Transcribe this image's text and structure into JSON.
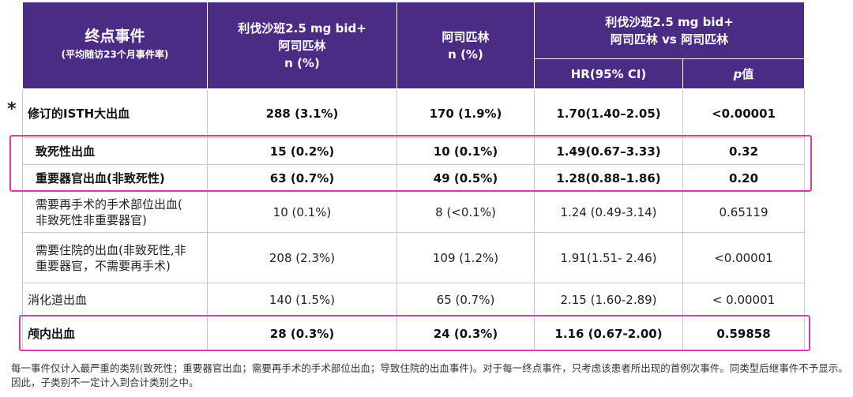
{
  "star": "*",
  "header": {
    "endpoint_main": "终点事件",
    "endpoint_sub": "(平均随访23个月事件率)",
    "riva_line1": "利伐沙班2.5 mg bid+",
    "riva_line2": "阿司匹林",
    "riva_line3": "n (%)",
    "asp_line1": "阿司匹林",
    "asp_line2": "n (%)",
    "compare_line1": "利伐沙班2.5 mg bid+",
    "compare_line2": "阿司匹林 vs 阿司匹林",
    "hr": "HR(95% CI)",
    "p_italic": "p",
    "p_rest": "值"
  },
  "rows": [
    {
      "name": "修订的ISTH大出血",
      "riva": "288  (3.1%)",
      "asp": "170  (1.9%)",
      "hr": "1.70(1.40–2.05)",
      "p": "<0.00001"
    },
    {
      "name": "致死性出血",
      "riva": "15  (0.2%)",
      "asp": "10  (0.1%)",
      "hr": "1.49(0.67–3.33)",
      "p": "0.32"
    },
    {
      "name": "重要器官出血(非致死性)",
      "riva": "63  (0.7%)",
      "asp": "49  (0.5%)",
      "hr": "1.28(0.88–1.86)",
      "p": "0.20"
    },
    {
      "name_line1": "需要再手术的手术部位出血(",
      "name_line2": "非致死性非重要器官)",
      "riva": "10  (0.1%)",
      "asp": "8  (<0.1%)",
      "hr": "1.24 (0.49-3.14)",
      "p": "0.65119"
    },
    {
      "name_line1": "需要住院的出血(非致死性,非",
      "name_line2": "重要器官，不需要再手术)",
      "riva": "208  (2.3%)",
      "asp": "109  (1.2%)",
      "hr": "1.91(1.51- 2.46)",
      "p": "<0.00001"
    },
    {
      "name": "消化道出血",
      "riva": "140   (1.5%)",
      "asp": "65 (0.7%)",
      "hr": "2.15  (1.60-2.89)",
      "p": "< 0.00001"
    },
    {
      "name": "颅内出血",
      "riva": "28  (0.3%)",
      "asp": "24  (0.3%)",
      "hr": "1.16 (0.67-2.00)",
      "p": "0.59858"
    }
  ],
  "footnote": "每一事件仅计入最严重的类别(致死性；重要器官出血；需要再手术的手术部位出血；导致住院的出血事件)。对于每一终点事件，只考虑该患者所出现的首例次事件。同类型后继事件不予显示。因此，子类别不一定计入到合计类别之中。",
  "colors": {
    "header_bg": "#4b2c85",
    "highlight": "#d63f9e"
  }
}
